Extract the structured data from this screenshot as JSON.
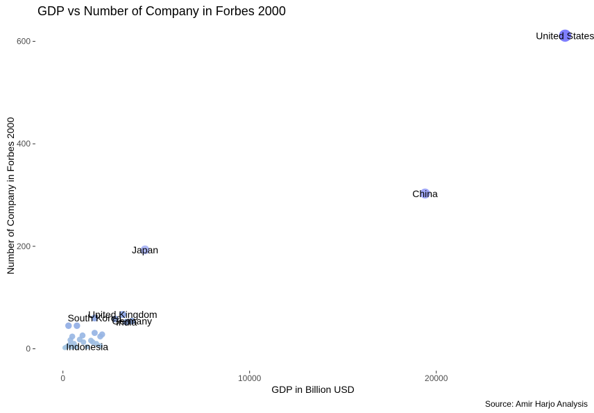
{
  "chart_data": {
    "type": "scatter",
    "title": "GDP vs Number of Company in Forbes 2000",
    "xlabel": "GDP in Billion USD",
    "ylabel": "Number of Company in Forbes 2000",
    "caption": "Source: Amir Harjo Analysis",
    "xlim": [
      -1400,
      28300
    ],
    "ylim": [
      -40,
      640
    ],
    "x_ticks": [
      0,
      10000,
      20000
    ],
    "x_tick_labels": [
      "0",
      "10000",
      "20000"
    ],
    "y_ticks": [
      0,
      200,
      400,
      600
    ],
    "y_tick_labels": [
      "0",
      "200",
      "400",
      "600"
    ],
    "grid": false,
    "legend": "none",
    "color_low": "#a6c8e0",
    "color_high": "#0000ff",
    "points": [
      {
        "label": "United States",
        "x": 26900,
        "y": 611
      },
      {
        "label": "China",
        "x": 19400,
        "y": 303
      },
      {
        "label": "Japan",
        "x": 4400,
        "y": 193
      },
      {
        "label": "United Kingdom",
        "x": 3200,
        "y": 67
      },
      {
        "label": "Germany",
        "x": 3700,
        "y": 54
      },
      {
        "label": "India",
        "x": 3400,
        "y": 52
      },
      {
        "label": "South Korea",
        "x": 1700,
        "y": 60
      },
      {
        "label": "Indonesia",
        "x": 1300,
        "y": 4
      },
      {
        "label": "",
        "x": 300,
        "y": 45
      },
      {
        "label": "",
        "x": 750,
        "y": 45
      },
      {
        "label": "",
        "x": 2800,
        "y": 58
      },
      {
        "label": "",
        "x": 1700,
        "y": 31
      },
      {
        "label": "",
        "x": 2100,
        "y": 28
      },
      {
        "label": "",
        "x": 2000,
        "y": 24
      },
      {
        "label": "",
        "x": 1050,
        "y": 26
      },
      {
        "label": "",
        "x": 500,
        "y": 24
      },
      {
        "label": "",
        "x": 400,
        "y": 17
      },
      {
        "label": "",
        "x": 900,
        "y": 18
      },
      {
        "label": "",
        "x": 1500,
        "y": 16
      },
      {
        "label": "",
        "x": 1600,
        "y": 13
      },
      {
        "label": "",
        "x": 1100,
        "y": 13
      },
      {
        "label": "",
        "x": 600,
        "y": 10
      },
      {
        "label": "",
        "x": 350,
        "y": 8
      },
      {
        "label": "",
        "x": 250,
        "y": 5
      },
      {
        "label": "",
        "x": 150,
        "y": 3
      },
      {
        "label": "",
        "x": 100,
        "y": 2
      },
      {
        "label": "",
        "x": 700,
        "y": 4
      },
      {
        "label": "",
        "x": 500,
        "y": 3
      },
      {
        "label": "",
        "x": 1800,
        "y": 10
      },
      {
        "label": "",
        "x": 2000,
        "y": 6
      }
    ]
  }
}
